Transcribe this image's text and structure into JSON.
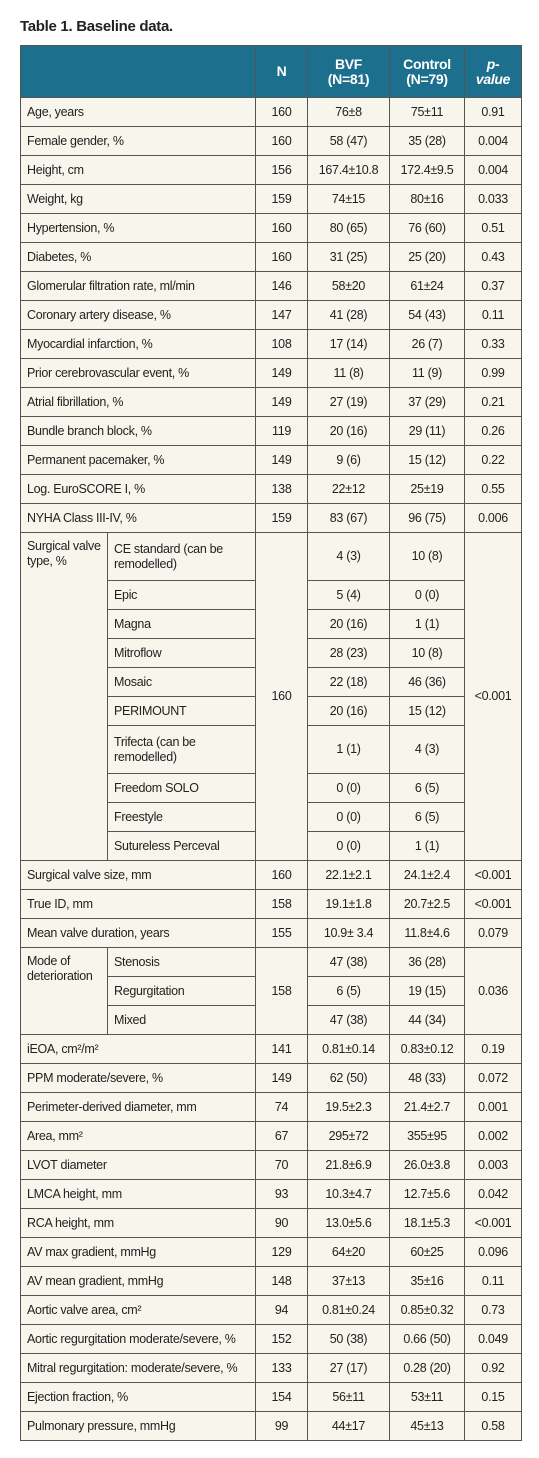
{
  "title": "Table 1. Baseline data.",
  "table": {
    "header": {
      "n": "N",
      "bvf": [
        "BVF",
        "(N=81)"
      ],
      "control": [
        "Control",
        "(N=79)"
      ],
      "p": "p-value"
    },
    "rows": [
      {
        "label": "Age, years",
        "n": 160,
        "bvf": "76±8",
        "control": "75±11",
        "p": "0.91"
      },
      {
        "label": "Female gender, %",
        "n": 160,
        "bvf": "58 (47)",
        "control": "35 (28)",
        "p": "0.004"
      },
      {
        "label": "Height, cm",
        "n": 156,
        "bvf": "167.4±10.8",
        "control": "172.4±9.5",
        "p": "0.004"
      },
      {
        "label": "Weight, kg",
        "n": 159,
        "bvf": "74±15",
        "control": "80±16",
        "p": "0.033"
      },
      {
        "label": "Hypertension, %",
        "n": 160,
        "bvf": "80 (65)",
        "control": "76 (60)",
        "p": "0.51"
      },
      {
        "label": "Diabetes, %",
        "n": 160,
        "bvf": "31 (25)",
        "control": "25 (20)",
        "p": "0.43"
      },
      {
        "label": "Glomerular filtration rate, ml/min",
        "n": 146,
        "bvf": "58±20",
        "control": "61±24",
        "p": "0.37"
      },
      {
        "label": "Coronary artery disease, %",
        "n": 147,
        "bvf": "41 (28)",
        "control": "54 (43)",
        "p": "0.11"
      },
      {
        "label": "Myocardial infarction, %",
        "n": 108,
        "bvf": "17 (14)",
        "control": "26 (7)",
        "p": "0.33"
      },
      {
        "label": "Prior cerebrovascular event, %",
        "n": 149,
        "bvf": "11 (8)",
        "control": "11 (9)",
        "p": "0.99"
      },
      {
        "label": "Atrial fibrillation, %",
        "n": 149,
        "bvf": "27 (19)",
        "control": "37 (29)",
        "p": "0.21"
      },
      {
        "label": "Bundle branch block, %",
        "n": 119,
        "bvf": "20 (16)",
        "control": "29 (11)",
        "p": "0.26"
      },
      {
        "label": "Permanent pacemaker, %",
        "n": 149,
        "bvf": "9 (6)",
        "control": "15 (12)",
        "p": "0.22"
      },
      {
        "label": "Log. EuroSCORE I, %",
        "n": 138,
        "bvf": "22±12",
        "control": "25±19",
        "p": "0.55"
      },
      {
        "label": "NYHA Class III-IV, %",
        "n": 159,
        "bvf": "83 (67)",
        "control": "96 (75)",
        "p": "0.006"
      },
      {
        "label": "Surgical valve type, %",
        "n": 160,
        "p": "<0.001",
        "subrows": [
          {
            "label": "CE standard (can be remodelled)",
            "bvf": "4 (3)",
            "control": "10 (8)"
          },
          {
            "label": "Epic",
            "bvf": "5 (4)",
            "control": "0 (0)"
          },
          {
            "label": "Magna",
            "bvf": "20 (16)",
            "control": "1 (1)"
          },
          {
            "label": "Mitroflow",
            "bvf": "28 (23)",
            "control": "10 (8)"
          },
          {
            "label": "Mosaic",
            "bvf": "22 (18)",
            "control": "46 (36)"
          },
          {
            "label": "PERIMOUNT",
            "bvf": "20 (16)",
            "control": "15 (12)"
          },
          {
            "label": "Trifecta (can be remodelled)",
            "bvf": "1 (1)",
            "control": "4 (3)"
          },
          {
            "label": "Freedom SOLO",
            "bvf": "0 (0)",
            "control": "6 (5)"
          },
          {
            "label": "Freestyle",
            "bvf": "0 (0)",
            "control": "6 (5)"
          },
          {
            "label": "Sutureless Perceval",
            "bvf": "0 (0)",
            "control": "1 (1)"
          }
        ]
      },
      {
        "label": "Surgical valve size, mm",
        "n": 160,
        "bvf": "22.1±2.1",
        "control": "24.1±2.4",
        "p": "<0.001"
      },
      {
        "label": "True ID, mm",
        "n": 158,
        "bvf": "19.1±1.8",
        "control": "20.7±2.5",
        "p": "<0.001"
      },
      {
        "label": "Mean valve duration, years",
        "n": 155,
        "bvf": "10.9± 3.4",
        "control": "11.8±4.6",
        "p": "0.079"
      },
      {
        "label": "Mode of deterioration",
        "n": 158,
        "p": "0.036",
        "subrows": [
          {
            "label": "Stenosis",
            "bvf": "47 (38)",
            "control": "36 (28)"
          },
          {
            "label": "Regurgitation",
            "bvf": "6 (5)",
            "control": "19 (15)"
          },
          {
            "label": "Mixed",
            "bvf": "47 (38)",
            "control": "44 (34)"
          }
        ]
      },
      {
        "label": "iEOA, cm²/m²",
        "n": 141,
        "bvf": "0.81±0.14",
        "control": "0.83±0.12",
        "p": "0.19"
      },
      {
        "label": "PPM moderate/severe, %",
        "n": 149,
        "bvf": "62 (50)",
        "control": "48 (33)",
        "p": "0.072"
      },
      {
        "label": "Perimeter-derived diameter, mm",
        "n": 74,
        "bvf": "19.5±2.3",
        "control": "21.4±2.7",
        "p": "0.001"
      },
      {
        "label": "Area, mm²",
        "n": 67,
        "bvf": "295±72",
        "control": "355±95",
        "p": "0.002"
      },
      {
        "label": "LVOT diameter",
        "n": 70,
        "bvf": "21.8±6.9",
        "control": "26.0±3.8",
        "p": "0.003"
      },
      {
        "label": "LMCA height, mm",
        "n": 93,
        "bvf": "10.3±4.7",
        "control": "12.7±5.6",
        "p": "0.042"
      },
      {
        "label": "RCA height, mm",
        "n": 90,
        "bvf": "13.0±5.6",
        "control": "18.1±5.3",
        "p": "<0.001"
      },
      {
        "label": "AV max gradient, mmHg",
        "n": 129,
        "bvf": "64±20",
        "control": "60±25",
        "p": "0.096"
      },
      {
        "label": "AV mean gradient, mmHg",
        "n": 148,
        "bvf": "37±13",
        "control": "35±16",
        "p": "0.11"
      },
      {
        "label": "Aortic valve area, cm²",
        "n": 94,
        "bvf": "0.81±0.24",
        "control": "0.85±0.32",
        "p": "0.73"
      },
      {
        "label": "Aortic regurgitation moderate/severe, %",
        "n": 152,
        "bvf": "50 (38)",
        "control": "0.66 (50)",
        "p": "0.049"
      },
      {
        "label": "Mitral regurgitation: moderate/severe, %",
        "n": 133,
        "bvf": "27 (17)",
        "control": "0.28 (20)",
        "p": "0.92"
      },
      {
        "label": "Ejection fraction, %",
        "n": 154,
        "bvf": "56±11",
        "control": "53±11",
        "p": "0.15"
      },
      {
        "label": "Pulmonary pressure, mmHg",
        "n": 99,
        "bvf": "44±17",
        "control": "45±13",
        "p": "0.58"
      }
    ]
  }
}
